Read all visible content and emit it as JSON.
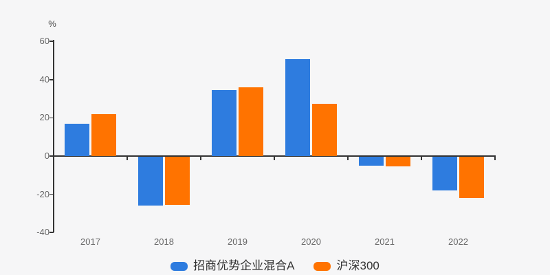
{
  "chart_data": {
    "type": "bar",
    "title": "",
    "xlabel": "",
    "ylabel": "%",
    "categories": [
      "2017",
      "2018",
      "2019",
      "2020",
      "2021",
      "2022"
    ],
    "series": [
      {
        "name": "招商优势企业混合A",
        "color": "#2e7cdf",
        "values": [
          16.8,
          -25.5,
          34.6,
          50.6,
          -4.6,
          -17.7
        ]
      },
      {
        "name": "沪深300",
        "color": "#ff7300",
        "values": [
          21.8,
          -25.3,
          36.1,
          27.2,
          -5.2,
          -21.6
        ]
      }
    ],
    "ylim": [
      -40,
      60
    ],
    "yticks": [
      60,
      40,
      20,
      0,
      -20,
      -40
    ],
    "grid": false,
    "legend_position": "bottom",
    "background_color": "#f6f6f7",
    "axis_color": "#333333",
    "tick_label_color": "#666666",
    "legend_text_color": "#333333"
  }
}
